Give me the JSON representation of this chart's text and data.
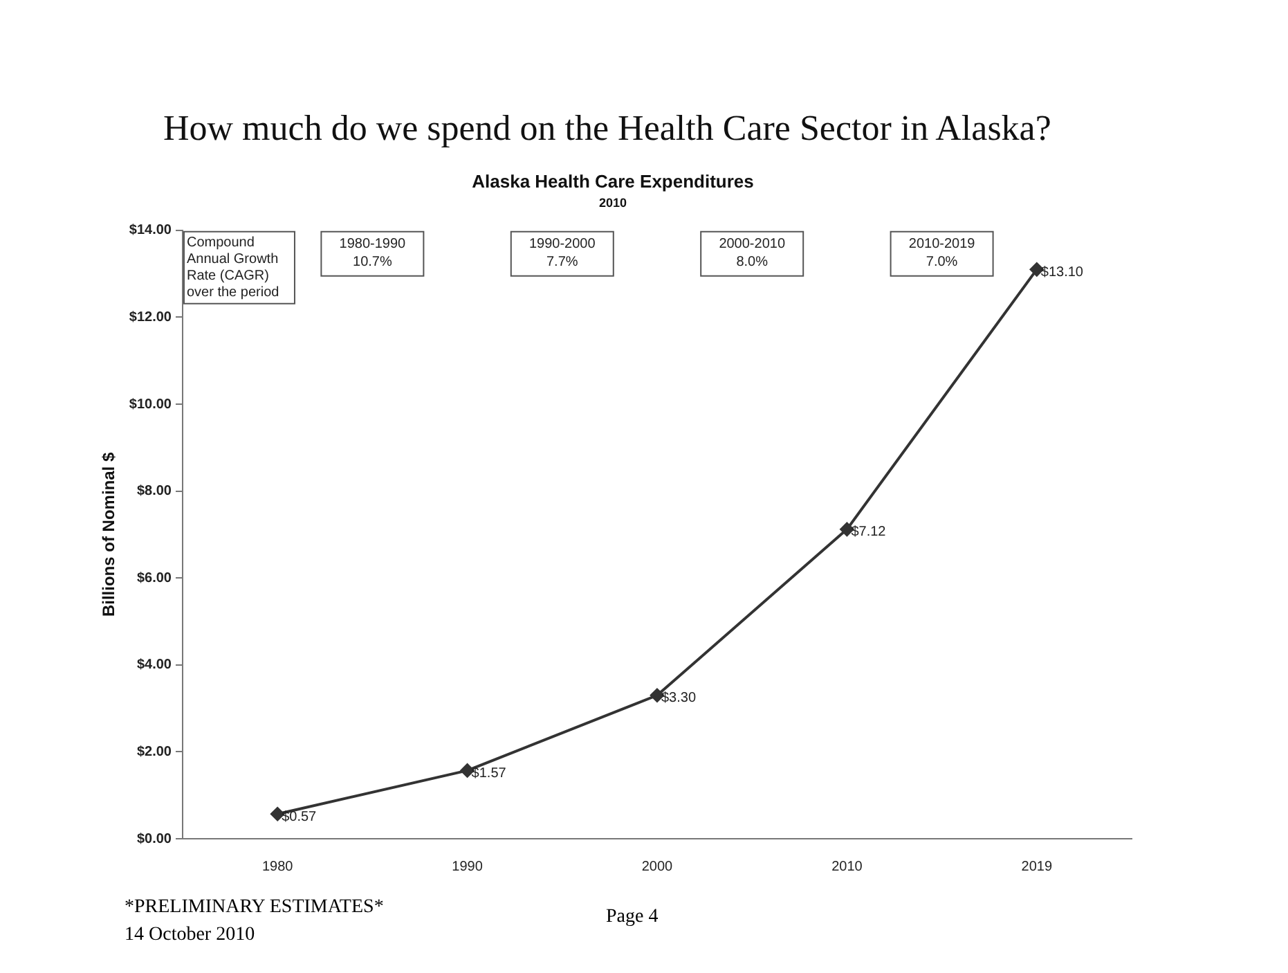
{
  "chart_data": {
    "type": "line",
    "title": "How much do we spend on the Health Care Sector in Alaska?",
    "subtitle": "Alaska Health Care Expenditures",
    "ylabel": "Billions of Nominal $",
    "categories": [
      "1980",
      "1990",
      "2000",
      "2010",
      "2019"
    ],
    "series": [
      {
        "color": "#333333",
        "values": [
          0.57,
          1.57,
          3.3,
          7.12,
          13.1
        ],
        "value_labels": [
          "$0.57",
          "$1.57",
          "$3.30",
          "$7.12",
          "$13.10"
        ]
      }
    ],
    "ylim": [
      0,
      14
    ],
    "yticks": [
      {
        "value": 0,
        "label": "$0.00"
      },
      {
        "value": 2,
        "label": "$2.00"
      },
      {
        "value": 4,
        "label": "$4.00"
      },
      {
        "value": 6,
        "label": "$6.00"
      },
      {
        "value": 8,
        "label": "$8.00"
      },
      {
        "value": 10,
        "label": "$10.00"
      },
      {
        "value": 12,
        "label": "$12.00"
      },
      {
        "value": 14,
        "label": "$14.00"
      }
    ],
    "grid": false,
    "legend": false,
    "marker": "diamond",
    "line_style": "solid",
    "annotations": [
      "2010",
      "Compound Annual Growth Rate (CAGR) over the period",
      "1980-1990\n10.7%",
      "1990-2000\n7.7%",
      "2000-2010\n8.0%",
      "2010-2019\n7.0%",
      "*PRELIMINARY ESTIMATES*",
      "14 October 2010",
      "Page 4"
    ]
  }
}
